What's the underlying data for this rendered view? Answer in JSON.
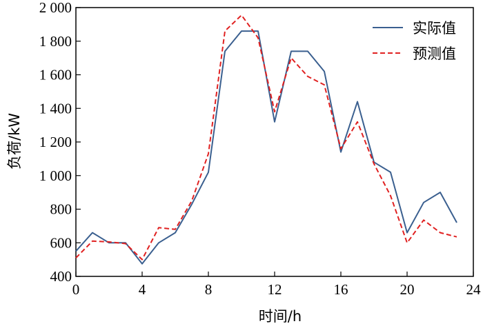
{
  "chart_data": {
    "type": "line",
    "x": [
      0,
      1,
      2,
      3,
      4,
      5,
      6,
      7,
      8,
      9,
      10,
      11,
      12,
      13,
      14,
      15,
      16,
      17,
      18,
      19,
      20,
      21,
      22,
      23
    ],
    "series": [
      {
        "name": "实际值",
        "color": "#3a5f8f",
        "dash": "solid",
        "values": [
          550,
          660,
          600,
          600,
          475,
          600,
          660,
          830,
          1020,
          1740,
          1860,
          1860,
          1320,
          1740,
          1740,
          1620,
          1140,
          1440,
          1080,
          1020,
          660,
          840,
          900,
          720
        ]
      },
      {
        "name": "预测值",
        "color": "#e02020",
        "dash": "dashed",
        "values": [
          510,
          610,
          605,
          595,
          500,
          690,
          680,
          850,
          1130,
          1860,
          1955,
          1820,
          1380,
          1700,
          1590,
          1540,
          1160,
          1320,
          1070,
          880,
          600,
          735,
          660,
          635
        ]
      }
    ],
    "xlabel": "时间/h",
    "ylabel": "负荷/kW",
    "xlim": [
      0,
      24
    ],
    "ylim": [
      400,
      2000
    ],
    "xticks": [
      0,
      4,
      8,
      12,
      16,
      20,
      24
    ],
    "xtick_labels": [
      "0",
      "4",
      "8",
      "12",
      "16",
      "20",
      "24"
    ],
    "yticks": [
      400,
      600,
      800,
      1000,
      1200,
      1400,
      1600,
      1800,
      2000
    ],
    "ytick_labels": [
      "400",
      "600",
      "800",
      "1 000",
      "1 200",
      "1 400",
      "1 600",
      "1 800",
      "2 000"
    ],
    "grid": false,
    "legend_position": "top-right"
  }
}
